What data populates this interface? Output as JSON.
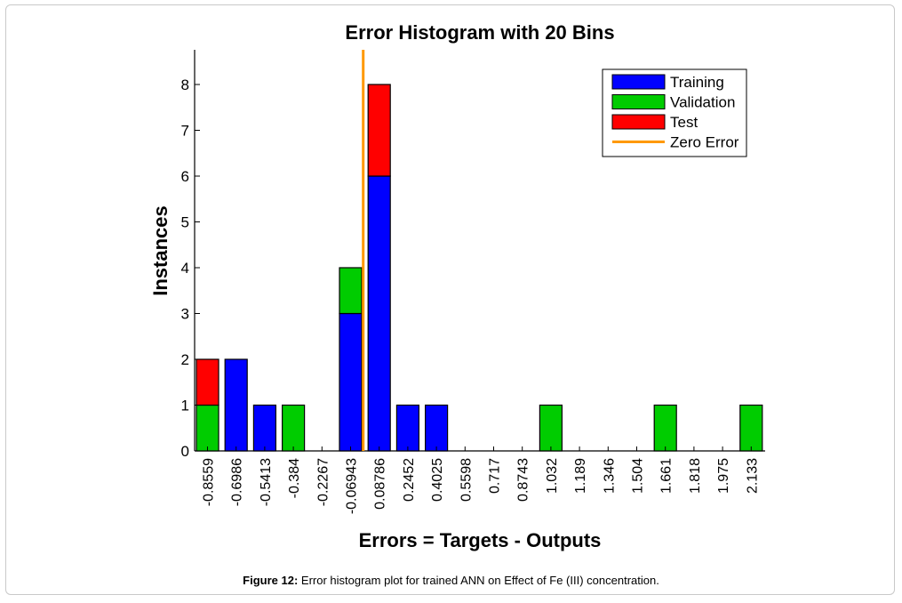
{
  "chart_data": {
    "type": "bar",
    "title": "Error Histogram with 20 Bins",
    "xlabel": "Errors = Targets - Outputs",
    "ylabel": "Instances",
    "ylim": [
      0,
      8.8
    ],
    "yticks": [
      0,
      1,
      2,
      3,
      4,
      5,
      6,
      7,
      8
    ],
    "stacked": true,
    "categories": [
      "-0.8559",
      "-0.6986",
      "-0.5413",
      "-0.384",
      "-0.2267",
      "-0.06943",
      "0.08786",
      "0.2452",
      "0.4025",
      "0.5598",
      "0.717",
      "0.8743",
      "1.032",
      "1.189",
      "1.346",
      "1.504",
      "1.661",
      "1.818",
      "1.975",
      "2.133"
    ],
    "series": [
      {
        "name": "Training",
        "color": "#0000ff",
        "values": [
          0,
          2,
          1,
          0,
          0,
          3,
          6,
          1,
          1,
          0,
          0,
          0,
          0,
          0,
          0,
          0,
          0,
          0,
          0,
          0
        ]
      },
      {
        "name": "Validation",
        "color": "#00cc00",
        "values": [
          1,
          0,
          0,
          1,
          0,
          1,
          0,
          0,
          0,
          0,
          0,
          0,
          1,
          0,
          0,
          0,
          1,
          0,
          0,
          1
        ]
      },
      {
        "name": "Test",
        "color": "#ff0000",
        "values": [
          1,
          0,
          0,
          0,
          0,
          0,
          2,
          0,
          0,
          0,
          0,
          0,
          0,
          0,
          0,
          0,
          0,
          0,
          0,
          0
        ]
      }
    ],
    "zero_error": {
      "name": "Zero Error",
      "color": "#ff9900",
      "x": 0
    },
    "legend_position": "top-right",
    "grid": false
  },
  "caption": {
    "label": "Figure 12:",
    "text": " Error histogram plot for trained ANN on Effect of Fe (III) concentration."
  }
}
